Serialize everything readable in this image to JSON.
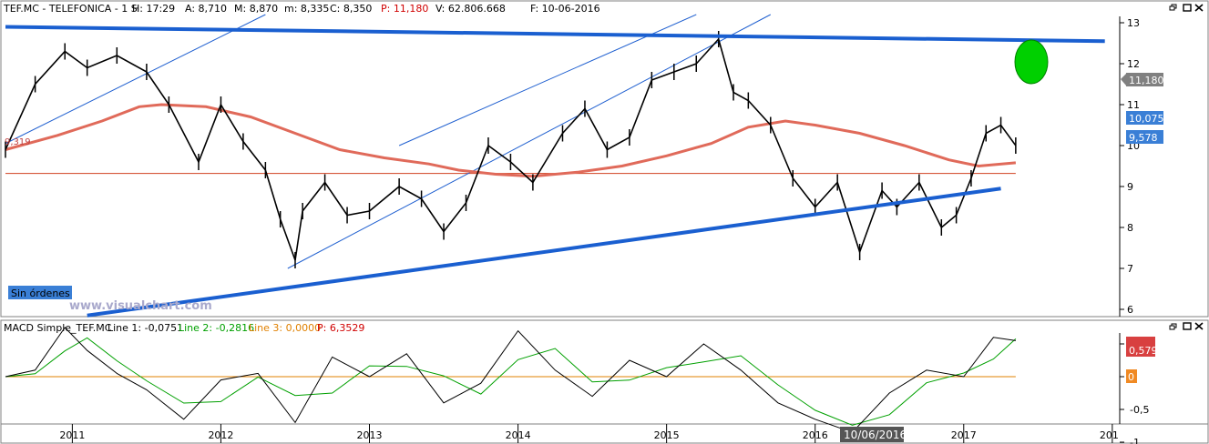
{
  "price_panel": {
    "header": {
      "symbol": "TEF.MC - TELEFONICA - 1 S",
      "hour": "H: 17:29",
      "open": "A: 8,710",
      "high": "M: 8,870",
      "low": "m: 8,335",
      "close": "C: 8,350",
      "p": "P: 11,180",
      "volume": "V: 62.806.668",
      "date": "F: 10-06-2016"
    },
    "y_ticks": [
      "13",
      "12",
      "11",
      "10",
      "9",
      "8",
      "7",
      "6"
    ],
    "badges": {
      "p": "11,180",
      "last": "10,075",
      "ma": "9,578"
    },
    "left_value": "9,319",
    "sin_ordenes": "Sin órdenes",
    "watermark": "www.visualchart.com"
  },
  "macd_panel": {
    "header": {
      "name": "MACD Simple_TEF.MC",
      "line1": "Line 1: -0,0751",
      "line2": "Line 2: -0,2816",
      "line3": "Line 3: 0,0000",
      "p": "P: 6,3529"
    },
    "y_ticks": [
      "0,5",
      "0",
      "-0,5",
      "-1"
    ],
    "badges": {
      "top": "0,579",
      "zero": "0"
    }
  },
  "x_axis": {
    "labels": [
      "2011",
      "2012",
      "2013",
      "2014",
      "2015",
      "2016",
      "2017",
      "201"
    ],
    "cursor_date": "10/06/2016"
  },
  "window_controls": [
    "restore-icon",
    "maximize-icon",
    "close-icon"
  ],
  "chart_data": {
    "type": "line",
    "title": "TEF.MC - TELEFONICA - 1 S",
    "x_range": [
      "2010-07",
      "2018-01"
    ],
    "ylim": [
      6,
      13.2
    ],
    "series": [
      {
        "name": "",
        "x": [
          2010.55,
          2010.75,
          2010.95,
          2011.1,
          2011.3,
          2011.5,
          2011.65,
          2011.85,
          2012.0,
          2012.15,
          2012.3,
          2012.4,
          2012.5,
          2012.55,
          2012.7,
          2012.85,
          2013.0,
          2013.2,
          2013.35,
          2013.5,
          2013.65,
          2013.8,
          2013.95,
          2014.1,
          2014.3,
          2014.45,
          2014.6,
          2014.75,
          2014.9,
          2015.05,
          2015.2,
          2015.35,
          2015.45,
          2015.55,
          2015.7,
          2015.85,
          2016.0,
          2016.15,
          2016.3,
          2016.45,
          2016.55,
          2016.7,
          2016.85,
          2016.95,
          2017.05,
          2017.15,
          2017.25,
          2017.35
        ],
        "y": [
          9.9,
          11.5,
          12.3,
          11.9,
          12.2,
          11.8,
          11.0,
          9.6,
          11.0,
          10.1,
          9.4,
          8.2,
          7.2,
          8.4,
          9.1,
          8.3,
          8.4,
          9.0,
          8.7,
          7.9,
          8.6,
          10.0,
          9.6,
          9.1,
          10.3,
          10.9,
          9.9,
          10.2,
          11.6,
          11.8,
          12.0,
          12.6,
          11.3,
          11.1,
          10.5,
          9.2,
          8.5,
          9.1,
          7.4,
          8.9,
          8.5,
          9.1,
          8.0,
          8.3,
          9.2,
          10.3,
          10.5,
          10.0
        ]
      },
      {
        "name": "",
        "x": [
          2010.55,
          2010.9,
          2011.2,
          2011.45,
          2011.6,
          2011.9,
          2012.2,
          2012.5,
          2012.8,
          2013.1,
          2013.4,
          2013.6,
          2013.85,
          2014.1,
          2014.4,
          2014.7,
          2015.0,
          2015.3,
          2015.55,
          2015.8,
          2016.0,
          2016.3,
          2016.6,
          2016.9,
          2017.1,
          2017.35
        ],
        "y": [
          9.9,
          10.25,
          10.6,
          10.95,
          11.0,
          10.95,
          10.7,
          10.3,
          9.9,
          9.7,
          9.55,
          9.4,
          9.3,
          9.25,
          9.35,
          9.5,
          9.75,
          10.05,
          10.45,
          10.6,
          10.5,
          10.3,
          10.0,
          9.65,
          9.5,
          9.58
        ]
      },
      {
        "name": "",
        "x": [
          2010.55,
          2017.35
        ],
        "y": [
          9.319,
          9.319
        ]
      },
      {
        "name": "",
        "x": [
          2010.55,
          2017.95
        ],
        "y": [
          12.9,
          12.55
        ]
      },
      {
        "name": "",
        "x": [
          2011.1,
          2017.25
        ],
        "y": [
          5.85,
          8.95
        ]
      },
      {
        "name": "MACD Simple_TEF.MC",
        "x": [
          2010.55,
          2010.75,
          2010.95,
          2011.1,
          2011.3,
          2011.5,
          2011.75,
          2012.0,
          2012.25,
          2012.5,
          2012.75,
          2013.0,
          2013.25,
          2013.5,
          2013.75,
          2014.0,
          2014.25,
          2014.5,
          2014.75,
          2015.0,
          2015.25,
          2015.5,
          2015.75,
          2016.0,
          2016.25,
          2016.5,
          2016.75,
          2017.0,
          2017.2,
          2017.35
        ],
        "y": [
          0.0,
          0.1,
          0.75,
          0.4,
          0.05,
          -0.2,
          -0.65,
          -0.05,
          0.05,
          -0.7,
          0.3,
          0.0,
          0.35,
          -0.4,
          -0.1,
          0.7,
          0.1,
          -0.3,
          0.25,
          0.0,
          0.5,
          0.1,
          -0.4,
          -0.65,
          -0.85,
          -0.25,
          0.1,
          0.0,
          0.6,
          0.55
        ]
      }
    ]
  }
}
